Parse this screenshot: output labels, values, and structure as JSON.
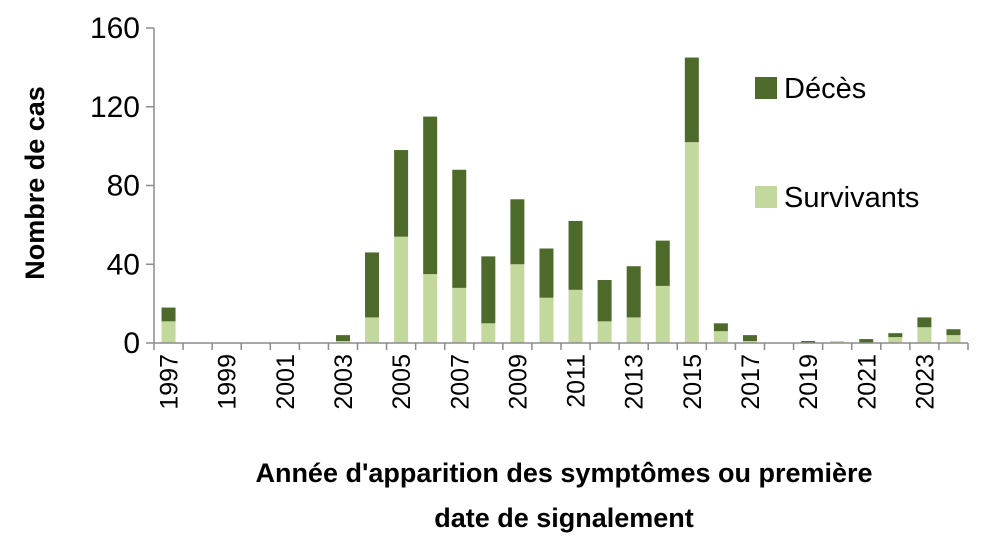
{
  "chart_data": {
    "type": "bar",
    "stacked": true,
    "title": "",
    "ylabel": "Nombre de cas",
    "xlabel_lines": [
      "Année d'apparition des symptômes ou première",
      "date de signalement"
    ],
    "ylim": [
      0,
      160
    ],
    "yticks": [
      0,
      40,
      80,
      120,
      160
    ],
    "grid": false,
    "legend_position": "right",
    "categories": [
      "1997",
      "1998",
      "1999",
      "2000",
      "2001",
      "2002",
      "2003",
      "2004",
      "2005",
      "2006",
      "2007",
      "2008",
      "2009",
      "2010",
      "2011",
      "2012",
      "2013",
      "2014",
      "2015",
      "2016",
      "2017",
      "2018",
      "2019",
      "2020",
      "2021",
      "2022",
      "2023",
      "2024"
    ],
    "xtick_labels": [
      "1997",
      "1999",
      "2001",
      "2003",
      "2005",
      "2007",
      "2009",
      "2011",
      "2013",
      "2015",
      "2017",
      "2019",
      "2021",
      "2023"
    ],
    "series": [
      {
        "name": "Survivants",
        "color": "#c3d89c",
        "values": [
          11,
          0,
          0,
          0,
          0,
          0,
          1,
          13,
          54,
          35,
          28,
          10,
          40,
          23,
          27,
          11,
          13,
          29,
          102,
          6,
          1,
          0,
          0,
          1,
          0,
          3,
          8,
          4
        ]
      },
      {
        "name": "Décès",
        "color": "#4e6a2a",
        "values": [
          7,
          0,
          0,
          0,
          0,
          0,
          3,
          33,
          44,
          80,
          60,
          34,
          33,
          25,
          35,
          21,
          26,
          23,
          43,
          4,
          3,
          0,
          1,
          0,
          2,
          2,
          5,
          3
        ]
      }
    ],
    "legend_order": [
      "Décès",
      "Survivants"
    ]
  }
}
